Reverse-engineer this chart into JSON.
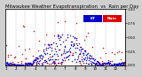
{
  "title": "Milwaukee Weather Evapotranspiration  vs  Rain per Day  (Inches)",
  "background_color": "#d0d0d0",
  "plot_bg_color": "#ffffff",
  "legend_et_color": "#0000cc",
  "legend_rain_color": "#dd0000",
  "legend_et_label": "ET",
  "legend_rain_label": "Rain",
  "x_min": 0,
  "x_max": 365,
  "y_min": 0.0,
  "y_max": 1.0,
  "dot_size": 1.2,
  "rain_color": "#cc0000",
  "et_color": "#0000cc",
  "title_fontsize": 3.8,
  "tick_fontsize": 3.0,
  "ylabel_right_labels": [
    "1.00",
    "0.75",
    "0.50",
    "0.25",
    "0.00"
  ],
  "ylabel_right_vals": [
    1.0,
    0.75,
    0.5,
    0.25,
    0.0
  ],
  "month_ticks": [
    1,
    32,
    60,
    91,
    121,
    152,
    182,
    213,
    244,
    274,
    305,
    335,
    365
  ],
  "month_labels": [
    "1",
    "2",
    "3",
    "4",
    "5",
    "6",
    "7",
    "8",
    "9",
    "10",
    "11",
    "12",
    "1"
  ],
  "vgrid_positions": [
    32,
    60,
    91,
    121,
    152,
    182,
    213,
    244,
    274,
    305,
    335
  ]
}
